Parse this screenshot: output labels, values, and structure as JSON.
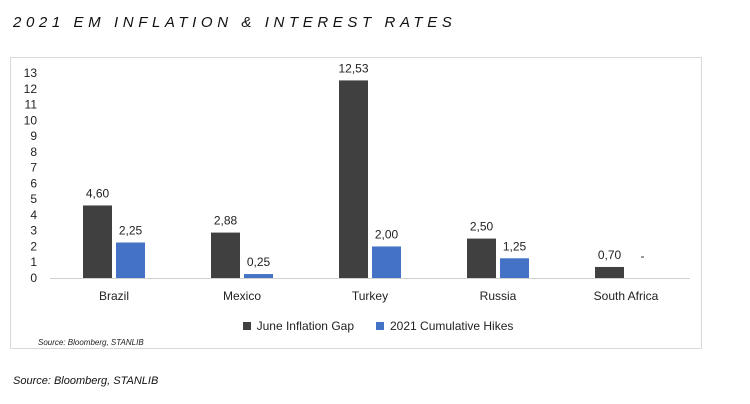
{
  "page": {
    "title": "2021 EM INFLATION & INTEREST RATES",
    "source_inner": "Source: Bloomberg, STANLIB",
    "source_outer": "Source: Bloomberg, STANLIB"
  },
  "colors": {
    "series1": "#404040",
    "series2": "#4472c4"
  },
  "chart_data": {
    "type": "bar",
    "categories": [
      "Brazil",
      "Mexico",
      "Turkey",
      "Russia",
      "South Africa"
    ],
    "series": [
      {
        "name": "June Inflation Gap",
        "values": [
          4.6,
          2.88,
          12.53,
          2.5,
          0.7
        ],
        "labels": [
          "4,60",
          "2,88",
          "12,53",
          "2,50",
          "0,70"
        ]
      },
      {
        "name": "2021 Cumulative Hikes",
        "values": [
          2.25,
          0.25,
          2.0,
          1.25,
          0
        ],
        "labels": [
          "2,25",
          "0,25",
          "2,00",
          "1,25",
          "-"
        ]
      }
    ],
    "y_ticks": [
      0,
      1,
      2,
      3,
      4,
      5,
      6,
      7,
      8,
      9,
      10,
      11,
      12,
      13
    ],
    "ylim": [
      0,
      13
    ],
    "grid": false,
    "legend": "bottom"
  }
}
